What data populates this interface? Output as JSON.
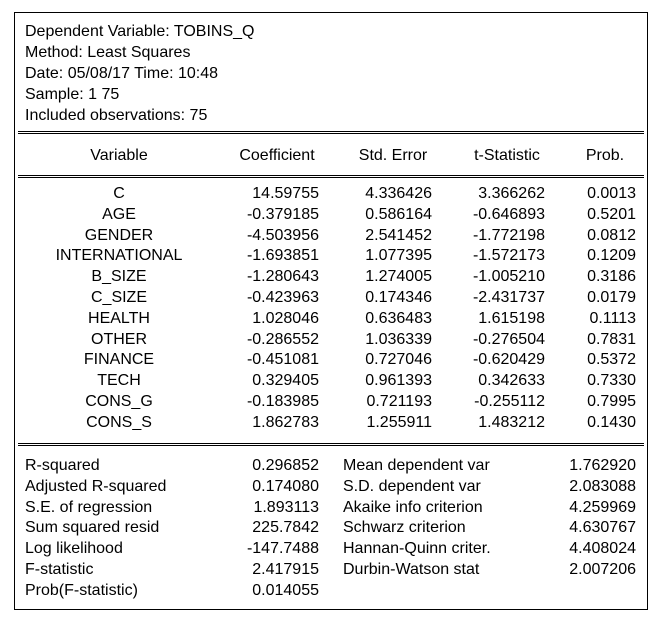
{
  "header": {
    "lines": [
      "Dependent Variable: TOBINS_Q",
      "Method: Least Squares",
      "Date: 05/08/17   Time: 10:48",
      "Sample: 1 75",
      "Included observations: 75"
    ]
  },
  "table": {
    "columns": [
      "Variable",
      "Coefficient",
      "Std. Error",
      "t-Statistic",
      "Prob."
    ],
    "rows": [
      {
        "variable": "C",
        "coefficient": "14.59755",
        "std_error": "4.336426",
        "t_statistic": "3.366262",
        "prob": "0.0013"
      },
      {
        "variable": "AGE",
        "coefficient": "-0.379185",
        "std_error": "0.586164",
        "t_statistic": "-0.646893",
        "prob": "0.5201"
      },
      {
        "variable": "GENDER",
        "coefficient": "-4.503956",
        "std_error": "2.541452",
        "t_statistic": "-1.772198",
        "prob": "0.0812"
      },
      {
        "variable": "INTERNATIONAL",
        "coefficient": "-1.693851",
        "std_error": "1.077395",
        "t_statistic": "-1.572173",
        "prob": "0.1209"
      },
      {
        "variable": "B_SIZE",
        "coefficient": "-1.280643",
        "std_error": "1.274005",
        "t_statistic": "-1.005210",
        "prob": "0.3186"
      },
      {
        "variable": "C_SIZE",
        "coefficient": "-0.423963",
        "std_error": "0.174346",
        "t_statistic": "-2.431737",
        "prob": "0.0179"
      },
      {
        "variable": "HEALTH",
        "coefficient": "1.028046",
        "std_error": "0.636483",
        "t_statistic": "1.615198",
        "prob": "0.1113"
      },
      {
        "variable": "OTHER",
        "coefficient": "-0.286552",
        "std_error": "1.036339",
        "t_statistic": "-0.276504",
        "prob": "0.7831"
      },
      {
        "variable": "FINANCE",
        "coefficient": "-0.451081",
        "std_error": "0.727046",
        "t_statistic": "-0.620429",
        "prob": "0.5372"
      },
      {
        "variable": "TECH",
        "coefficient": "0.329405",
        "std_error": "0.961393",
        "t_statistic": "0.342633",
        "prob": "0.7330"
      },
      {
        "variable": "CONS_G",
        "coefficient": "-0.183985",
        "std_error": "0.721193",
        "t_statistic": "-0.255112",
        "prob": "0.7995"
      },
      {
        "variable": "CONS_S",
        "coefficient": "1.862783",
        "std_error": "1.255911",
        "t_statistic": "1.483212",
        "prob": "0.1430"
      }
    ]
  },
  "stats": [
    {
      "label1": "R-squared",
      "value1": "0.296852",
      "label2": "Mean dependent var",
      "value2": "1.762920"
    },
    {
      "label1": "Adjusted R-squared",
      "value1": "0.174080",
      "label2": "S.D. dependent var",
      "value2": "2.083088"
    },
    {
      "label1": "S.E. of regression",
      "value1": "1.893113",
      "label2": "Akaike info criterion",
      "value2": "4.259969"
    },
    {
      "label1": "Sum squared resid",
      "value1": "225.7842",
      "label2": "Schwarz criterion",
      "value2": "4.630767"
    },
    {
      "label1": "Log likelihood",
      "value1": "-147.7488",
      "label2": "Hannan-Quinn criter.",
      "value2": "4.408024"
    },
    {
      "label1": "F-statistic",
      "value1": "2.417915",
      "label2": "Durbin-Watson stat",
      "value2": "2.007206"
    },
    {
      "label1": "Prob(F-statistic)",
      "value1": "0.014055",
      "label2": "",
      "value2": ""
    }
  ]
}
